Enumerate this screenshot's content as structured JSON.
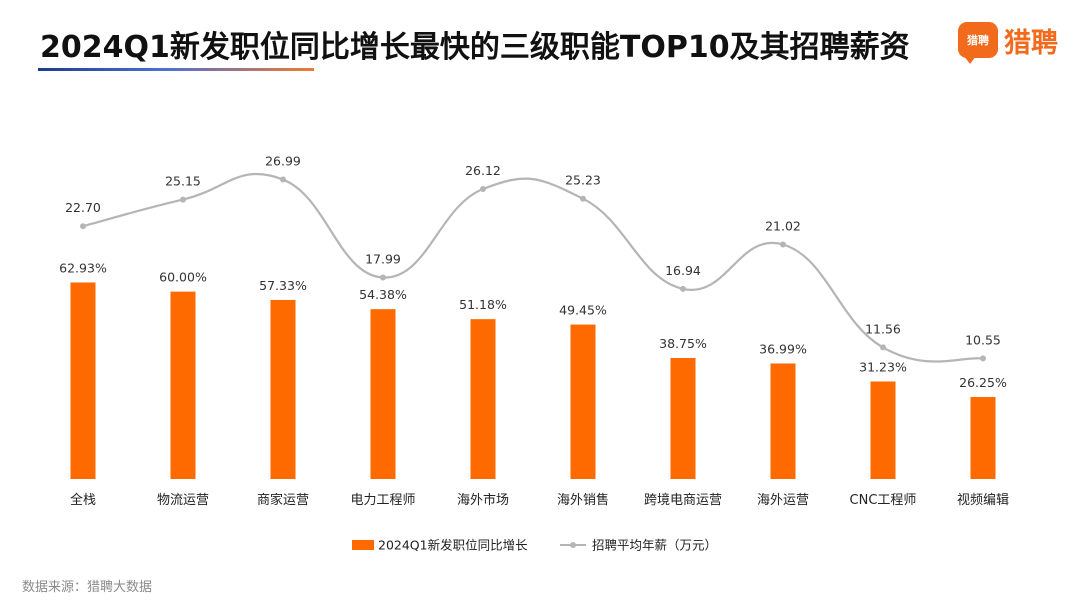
{
  "title": "2024Q1新发职位同比增长最快的三级职能TOP10及其招聘薪资",
  "logo": {
    "badge_text": "猎聘",
    "text": "猎聘"
  },
  "source": "数据来源：猎聘大数据",
  "colors": {
    "bar": "#ff6a00",
    "line": "#b5b5b5",
    "underline_start": "#1f3b8c",
    "underline_end": "#f07b2f",
    "brand": "#f26a1b"
  },
  "chart_data": {
    "type": "bar",
    "categories": [
      "全栈",
      "物流运营",
      "商家运营",
      "电力工程师",
      "海外市场",
      "海外销售",
      "跨境电商运营",
      "海外运营",
      "CNC工程师",
      "视频编辑"
    ],
    "series": [
      {
        "name": "2024Q1新发职位同比增长",
        "type": "bar",
        "values": [
          62.93,
          60.0,
          57.33,
          54.38,
          51.18,
          49.45,
          38.75,
          36.99,
          31.23,
          26.25
        ],
        "labels": [
          "62.93%",
          "60.00%",
          "57.33%",
          "54.38%",
          "51.18%",
          "49.45%",
          "38.75%",
          "36.99%",
          "31.23%",
          "26.25%"
        ]
      },
      {
        "name": "招聘平均年薪（万元）",
        "type": "line",
        "smooth": true,
        "values": [
          22.7,
          25.15,
          26.99,
          17.99,
          26.12,
          25.23,
          16.94,
          21.02,
          11.56,
          10.55
        ],
        "labels": [
          "22.70",
          "25.15",
          "26.99",
          "17.99",
          "26.12",
          "25.23",
          "16.94",
          "21.02",
          "11.56",
          "10.55"
        ]
      }
    ],
    "legend_position": "bottom",
    "grid": false
  }
}
